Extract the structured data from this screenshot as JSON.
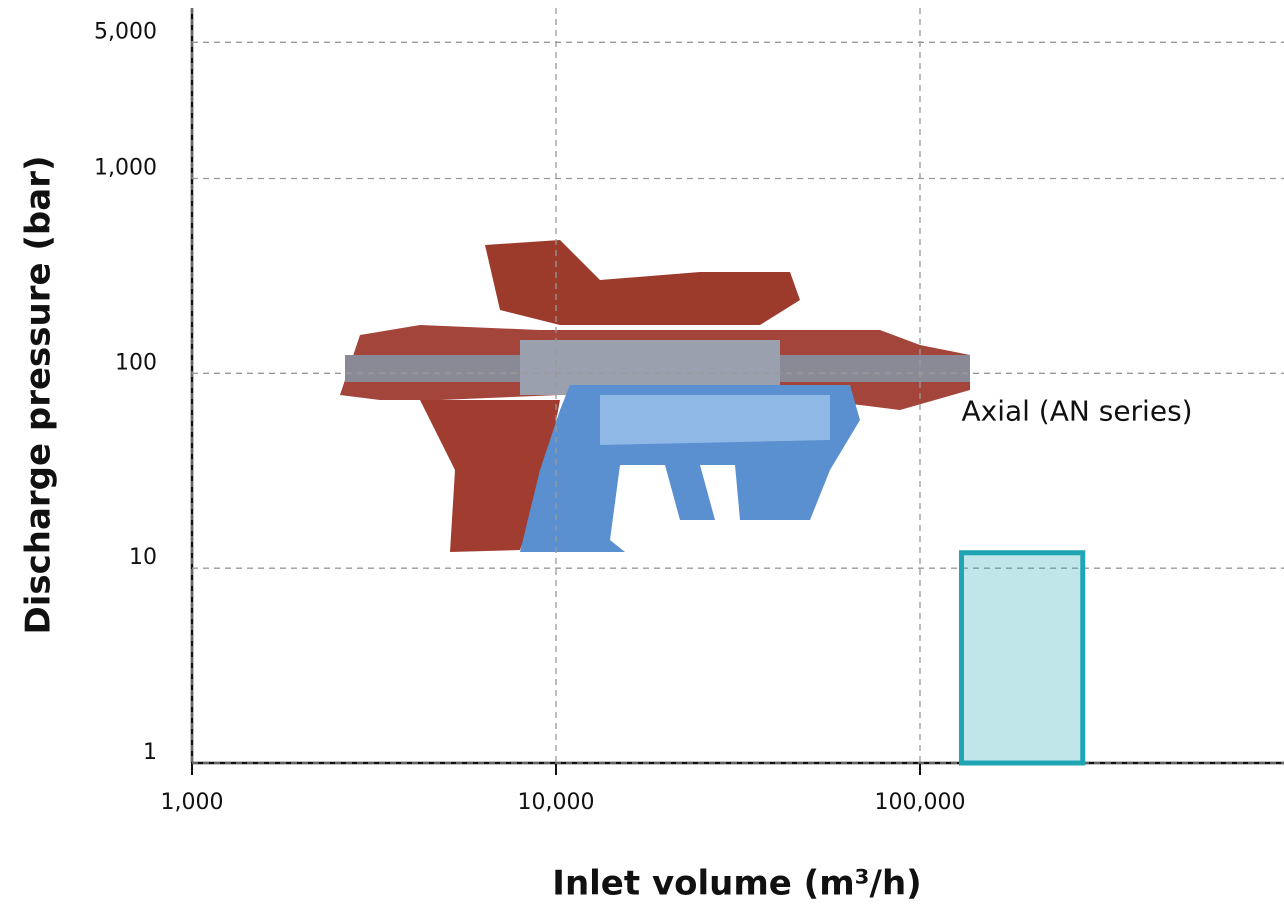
{
  "chart_data": {
    "type": "region",
    "xlabel": "Inlet volume (m³/h)",
    "ylabel": "Discharge pressure (bar)",
    "xscale": "log",
    "yscale": "log",
    "grid": true,
    "xlim": [
      1000,
      1000000
    ],
    "xticks": [
      {
        "value": 1000,
        "label": "1,000"
      },
      {
        "value": 10000,
        "label": "10,000"
      },
      {
        "value": 100000,
        "label": "100,000"
      }
    ],
    "ylim": [
      1,
      7500
    ],
    "yticks": [
      1,
      10,
      100,
      {
        "value": 1000,
        "label": "1,000"
      },
      {
        "value": 5000,
        "label": "5,000"
      }
    ],
    "regions": [
      {
        "name": "Axial (AN series)",
        "color": "#1fa5b4",
        "x": [
          130000,
          280000
        ],
        "y": [
          1,
          12
        ]
      }
    ]
  }
}
